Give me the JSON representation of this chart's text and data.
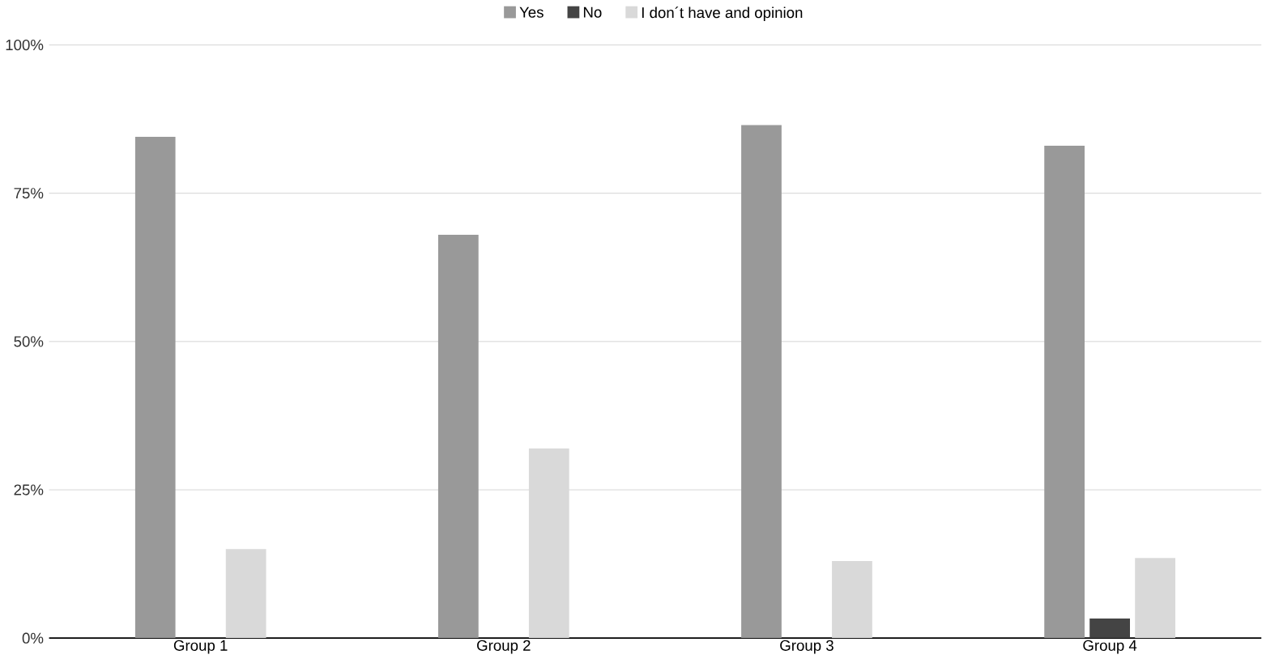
{
  "chart_data": {
    "type": "bar",
    "categories": [
      "Group 1",
      "Group 2",
      "Group 3",
      "Group 4"
    ],
    "series": [
      {
        "name": "Yes",
        "color": "#999999",
        "values": [
          84.5,
          68,
          86.5,
          83
        ]
      },
      {
        "name": "No",
        "color": "#444444",
        "values": [
          0,
          0,
          0,
          3.3
        ]
      },
      {
        "name": "I don´t have and opinion",
        "color": "#d9d9d9",
        "values": [
          15,
          32,
          13,
          13.5
        ]
      }
    ],
    "ylim": [
      0,
      100
    ],
    "yticks": [
      {
        "value": 0,
        "label": "0%"
      },
      {
        "value": 25,
        "label": "25%"
      },
      {
        "value": 50,
        "label": "50%"
      },
      {
        "value": 75,
        "label": "75%"
      },
      {
        "value": 100,
        "label": "100%"
      }
    ],
    "grid": "y",
    "legend": "top"
  }
}
